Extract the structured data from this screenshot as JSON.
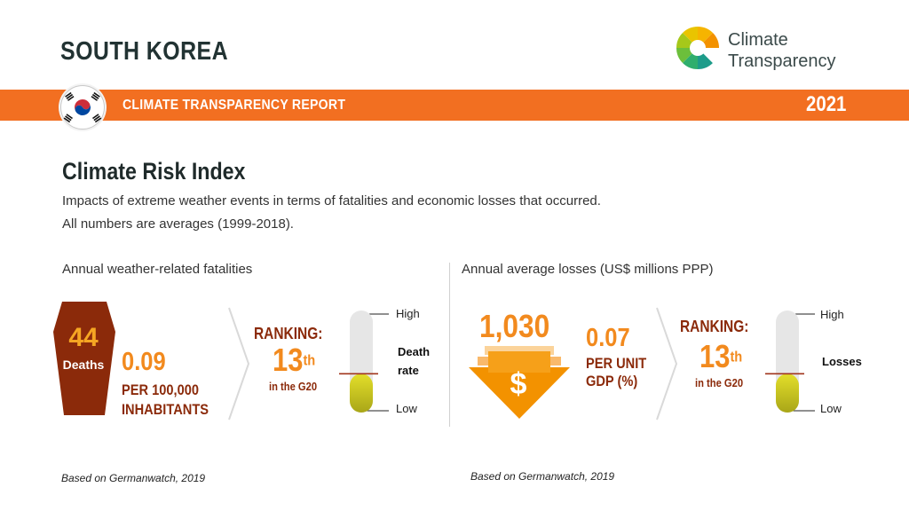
{
  "header": {
    "country": "SOUTH KOREA",
    "logo_line1": "Climate",
    "logo_line2": "Transparency",
    "banner_label": "CLIMATE TRANSPARENCY REPORT",
    "year": "2021"
  },
  "section": {
    "title": "Climate Risk Index",
    "desc_line1": "Impacts of extreme weather events in terms of fatalities and economic losses that occurred.",
    "desc_line2": "All numbers are averages (1999-2018)."
  },
  "fatalities": {
    "heading": "Annual weather-related fatalities",
    "deaths_value": "44",
    "deaths_label": "Deaths",
    "rate_value": "0.09",
    "rate_line1": "PER 100,000",
    "rate_line2": "INHABITANTS",
    "ranking_label": "RANKING:",
    "ranking_value": "13",
    "ranking_suffix": "th",
    "ranking_sub": "in the G20",
    "gauge_high": "High",
    "gauge_low": "Low",
    "gauge_label_line1": "Death",
    "gauge_label_line2": "rate",
    "gauge_level": 0.38,
    "source": "Based on Germanwatch, 2019"
  },
  "losses": {
    "heading": "Annual average losses (US$ millions PPP)",
    "loss_value": "1,030",
    "dollar_symbol": "$",
    "gdp_value": "0.07",
    "gdp_line1": "PER UNIT",
    "gdp_line2": "GDP (%)",
    "ranking_label": "RANKING:",
    "ranking_value": "13",
    "ranking_suffix": "th",
    "ranking_sub": "in the G20",
    "gauge_high": "High",
    "gauge_low": "Low",
    "gauge_label": "Losses",
    "gauge_level": 0.38,
    "source": "Based on Germanwatch, 2019"
  },
  "colors": {
    "accent": "#f26f21",
    "orange_text": "#f28a1e",
    "brown_text": "#8b2a0a",
    "gauge_fill": "#b9b51c",
    "marker": "#a0341c"
  }
}
